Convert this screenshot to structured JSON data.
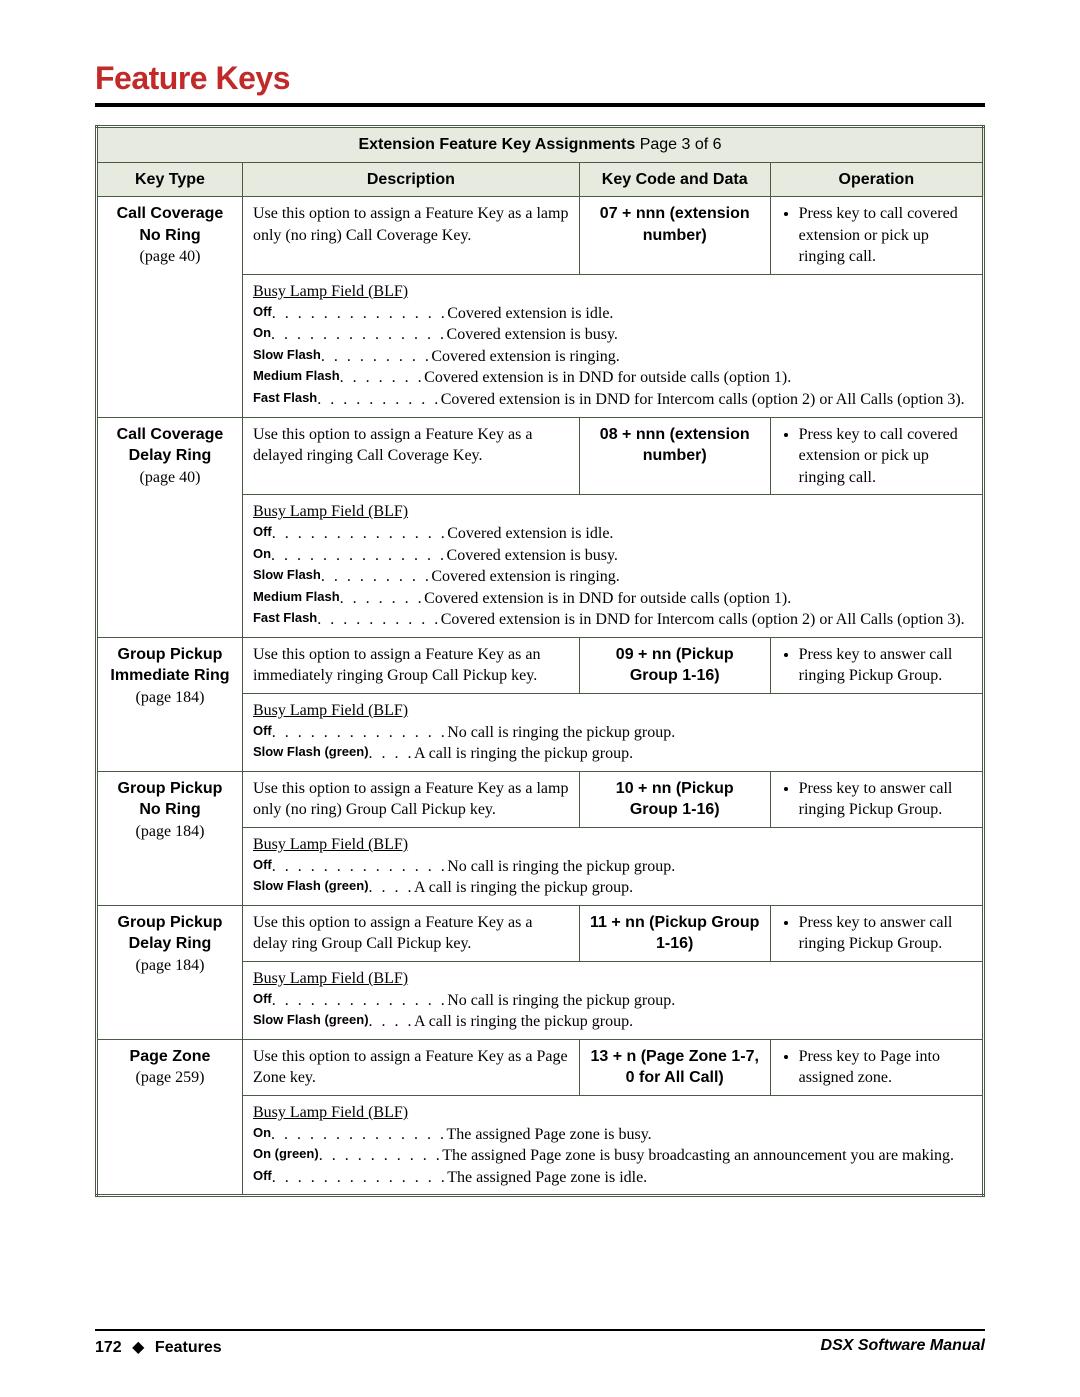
{
  "page": {
    "title": "Feature Keys",
    "footer_page": "172",
    "footer_diamond": "◆",
    "footer_section": "Features",
    "footer_right": "DSX Software Manual"
  },
  "table": {
    "caption_bold": "Extension Feature Key Assignments",
    "caption_tail": "  Page 3 of 6",
    "headers": {
      "key_type": "Key Type",
      "description": "Description",
      "code": "Key Code and Data",
      "operation": "Operation"
    },
    "rows": [
      {
        "key_name": "Call Coverage No Ring",
        "key_page": "(page 40)",
        "desc": "Use this option to assign a Feature Key as a lamp only (no ring) Call Coverage Key.",
        "code": "07 + nnn (extension number)",
        "op": "Press key to call covered extension or pick up ringing call.",
        "blf_title": "Busy Lamp Field (BLF)",
        "blf": [
          {
            "state": "Off",
            "dots": " . . . . . . . . . . . . . . ",
            "text": "Covered extension is idle."
          },
          {
            "state": "On",
            "dots": " . . . . . . . . . . . . . . ",
            "text": "Covered extension is busy."
          },
          {
            "state": "Slow Flash",
            "dots": " . . . . . . . . . ",
            "text": "Covered extension is ringing."
          },
          {
            "state": "Medium Flash",
            "dots": " . . . . . . . ",
            "text": "Covered extension is in DND for outside calls (option 1)."
          },
          {
            "state": "Fast Flash",
            "dots": " . . . . . . . . . .",
            "text": "Covered extension is in DND for Intercom calls (option 2) or All Calls (option 3)."
          }
        ]
      },
      {
        "key_name": "Call Coverage Delay Ring",
        "key_page": "(page 40)",
        "desc": "Use this option to assign a Feature Key as a delayed ringing Call Coverage Key.",
        "code": "08 + nnn (extension number)",
        "op": "Press key to call covered extension or pick up ringing call.",
        "blf_title": "Busy Lamp Field (BLF)",
        "blf": [
          {
            "state": "Off",
            "dots": " . . . . . . . . . . . . . . ",
            "text": "Covered extension is idle."
          },
          {
            "state": "On",
            "dots": " . . . . . . . . . . . . . . ",
            "text": "Covered extension is busy."
          },
          {
            "state": "Slow Flash",
            "dots": " . . . . . . . . . ",
            "text": "Covered extension is ringing."
          },
          {
            "state": "Medium Flash",
            "dots": " . . . . . . . ",
            "text": "Covered extension is in DND for outside calls (option 1)."
          },
          {
            "state": "Fast Flash",
            "dots": " . . . . . . . . . .",
            "text": "Covered extension is in DND for Intercom calls (option 2) or All Calls (option 3)."
          }
        ]
      },
      {
        "key_name": "Group Pickup Immediate Ring",
        "key_page": "(page 184)",
        "desc": "Use this option to assign a Feature Key as an immediately ringing Group Call Pickup key.",
        "code": "09 + nn (Pickup Group 1-16)",
        "op": "Press key to answer call ringing Pickup Group.",
        "blf_title": "Busy Lamp Field (BLF)",
        "blf": [
          {
            "state": "Off",
            "dots": " . . . . . . . . . . . . . . ",
            "text": "No call is ringing the pickup group."
          },
          {
            "state": "Slow Flash (green)",
            "dots": " . . . . ",
            "text": "A call is ringing the pickup group."
          }
        ]
      },
      {
        "key_name": "Group Pickup No Ring",
        "key_page": "(page 184)",
        "desc": "Use this option to assign a Feature Key as a lamp only (no ring) Group Call Pickup key.",
        "code": "10 + nn (Pickup Group 1-16)",
        "op": "Press key to answer call ringing Pickup Group.",
        "blf_title": "Busy Lamp Field (BLF)",
        "blf": [
          {
            "state": "Off",
            "dots": " . . . . . . . . . . . . . . ",
            "text": "No call is ringing the pickup group."
          },
          {
            "state": "Slow Flash (green)",
            "dots": " . . . . ",
            "text": "A call is ringing the pickup group."
          }
        ]
      },
      {
        "key_name": "Group Pickup Delay Ring",
        "key_page": "(page 184)",
        "desc": "Use this option to assign a Feature Key as a delay ring Group Call Pickup key.",
        "code": "11 + nn (Pickup Group 1-16)",
        "op": "Press key to answer call ringing Pickup Group.",
        "blf_title": "Busy Lamp Field (BLF)",
        "blf": [
          {
            "state": "Off",
            "dots": " . . . . . . . . . . . . . . ",
            "text": "No call is ringing the pickup group."
          },
          {
            "state": "Slow Flash (green)",
            "dots": " . . . . ",
            "text": "A call is ringing the pickup group."
          }
        ]
      },
      {
        "key_name": "Page Zone",
        "key_page": "(page 259)",
        "desc": "Use this option to assign a Feature Key as a Page Zone key.",
        "code": "13 + n (Page Zone 1-7, 0 for All Call)",
        "op": "Press key to Page into assigned zone.",
        "blf_title": "Busy Lamp Field (BLF)",
        "blf": [
          {
            "state": "On",
            "dots": " . . . . . . . . . . . . . . ",
            "text": "The assigned Page zone is busy."
          },
          {
            "state": "On (green)",
            "dots": ". . . . . . . . . . ",
            "text": "The assigned Page zone is busy broadcasting an announcement you are making."
          },
          {
            "state": "Off",
            "dots": " . . . . . . . . . . . . . . ",
            "text": "The assigned Page zone is idle."
          }
        ]
      }
    ]
  },
  "colors": {
    "title": "#c22a2a",
    "border": "#495b44",
    "header_bg": "#e6eadf"
  }
}
